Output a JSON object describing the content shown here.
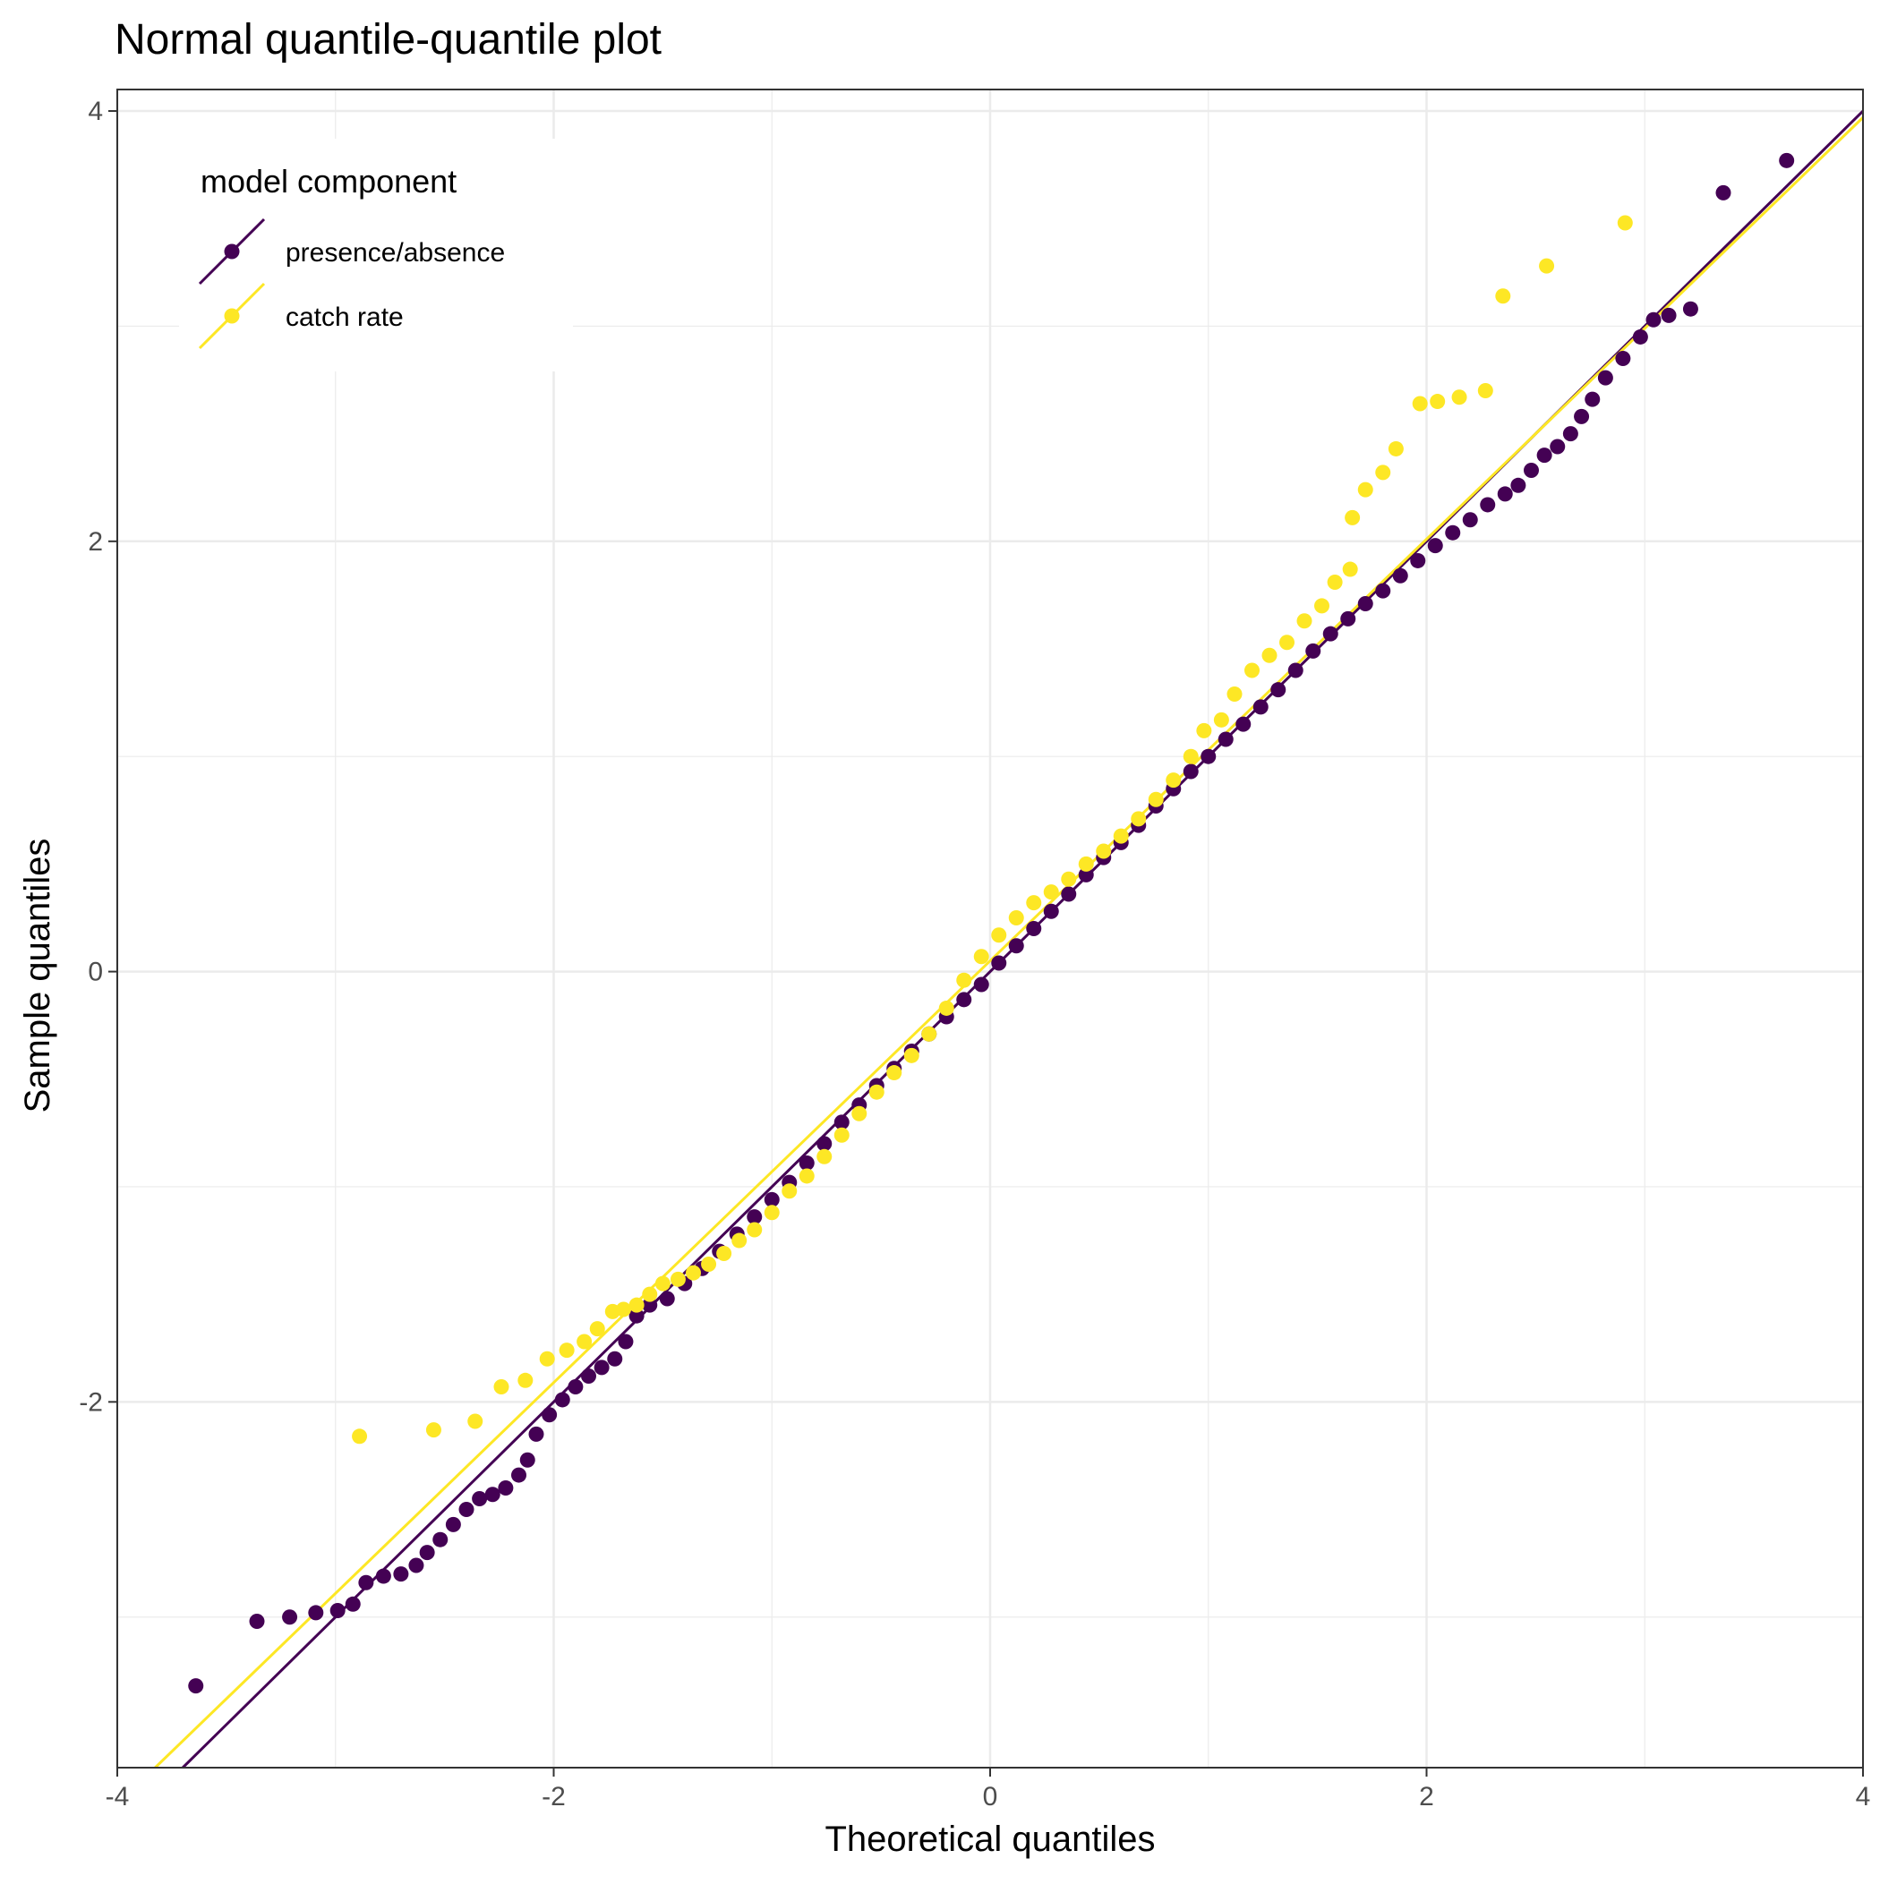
{
  "chart_data": {
    "type": "scatter",
    "title": "Normal quantile-quantile plot",
    "xlabel": "Theoretical quantiles",
    "ylabel": "Sample quantiles",
    "xlim": [
      -4,
      4
    ],
    "ylim": [
      -3.7,
      4.1
    ],
    "x_ticks": [
      "-4",
      "-2",
      "0",
      "2",
      "4"
    ],
    "y_ticks": [
      "-2",
      "0",
      "2",
      "4"
    ],
    "x_tick_values": [
      -4,
      -2,
      0,
      2,
      4
    ],
    "y_tick_values": [
      -2,
      0,
      2,
      4
    ],
    "grid": true,
    "legend": {
      "title": "model component",
      "placement": "top-left"
    },
    "series": [
      {
        "name": "presence/absence",
        "color": "#440154",
        "reference_line": {
          "intercept": 0.0,
          "slope": 1.0
        },
        "points": [
          [
            -3.64,
            -3.32
          ],
          [
            -3.36,
            -3.02
          ],
          [
            -3.21,
            -3.0
          ],
          [
            -3.09,
            -2.98
          ],
          [
            -2.99,
            -2.97
          ],
          [
            -2.92,
            -2.94
          ],
          [
            -2.86,
            -2.84
          ],
          [
            -2.78,
            -2.81
          ],
          [
            -2.7,
            -2.8
          ],
          [
            -2.63,
            -2.76
          ],
          [
            -2.58,
            -2.7
          ],
          [
            -2.52,
            -2.64
          ],
          [
            -2.46,
            -2.57
          ],
          [
            -2.4,
            -2.5
          ],
          [
            -2.34,
            -2.45
          ],
          [
            -2.28,
            -2.43
          ],
          [
            -2.22,
            -2.4
          ],
          [
            -2.16,
            -2.34
          ],
          [
            -2.12,
            -2.27
          ],
          [
            -2.08,
            -2.15
          ],
          [
            -2.02,
            -2.06
          ],
          [
            -1.96,
            -1.99
          ],
          [
            -1.9,
            -1.93
          ],
          [
            -1.84,
            -1.88
          ],
          [
            -1.78,
            -1.84
          ],
          [
            -1.72,
            -1.8
          ],
          [
            -1.67,
            -1.72
          ],
          [
            -1.62,
            -1.6
          ],
          [
            -1.56,
            -1.55
          ],
          [
            -1.48,
            -1.52
          ],
          [
            -1.4,
            -1.45
          ],
          [
            -1.32,
            -1.38
          ],
          [
            -1.24,
            -1.3
          ],
          [
            -1.16,
            -1.22
          ],
          [
            -1.08,
            -1.14
          ],
          [
            -1.0,
            -1.06
          ],
          [
            -0.92,
            -0.98
          ],
          [
            -0.84,
            -0.89
          ],
          [
            -0.76,
            -0.8
          ],
          [
            -0.68,
            -0.7
          ],
          [
            -0.6,
            -0.62
          ],
          [
            -0.52,
            -0.53
          ],
          [
            -0.44,
            -0.45
          ],
          [
            -0.36,
            -0.37
          ],
          [
            -0.28,
            -0.29
          ],
          [
            -0.2,
            -0.21
          ],
          [
            -0.12,
            -0.13
          ],
          [
            -0.04,
            -0.06
          ],
          [
            0.04,
            0.04
          ],
          [
            0.12,
            0.12
          ],
          [
            0.2,
            0.2
          ],
          [
            0.28,
            0.28
          ],
          [
            0.36,
            0.36
          ],
          [
            0.44,
            0.45
          ],
          [
            0.52,
            0.53
          ],
          [
            0.6,
            0.6
          ],
          [
            0.68,
            0.68
          ],
          [
            0.76,
            0.77
          ],
          [
            0.84,
            0.85
          ],
          [
            0.92,
            0.93
          ],
          [
            1.0,
            1.0
          ],
          [
            1.08,
            1.08
          ],
          [
            1.16,
            1.15
          ],
          [
            1.24,
            1.23
          ],
          [
            1.32,
            1.31
          ],
          [
            1.4,
            1.4
          ],
          [
            1.48,
            1.49
          ],
          [
            1.56,
            1.57
          ],
          [
            1.64,
            1.64
          ],
          [
            1.72,
            1.71
          ],
          [
            1.8,
            1.77
          ],
          [
            1.88,
            1.84
          ],
          [
            1.96,
            1.91
          ],
          [
            2.04,
            1.98
          ],
          [
            2.12,
            2.04
          ],
          [
            2.2,
            2.1
          ],
          [
            2.28,
            2.17
          ],
          [
            2.36,
            2.22
          ],
          [
            2.42,
            2.26
          ],
          [
            2.48,
            2.33
          ],
          [
            2.54,
            2.4
          ],
          [
            2.6,
            2.44
          ],
          [
            2.66,
            2.5
          ],
          [
            2.71,
            2.58
          ],
          [
            2.76,
            2.66
          ],
          [
            2.82,
            2.76
          ],
          [
            2.9,
            2.85
          ],
          [
            2.98,
            2.95
          ],
          [
            3.04,
            3.03
          ],
          [
            3.11,
            3.05
          ],
          [
            3.21,
            3.08
          ],
          [
            3.36,
            3.62
          ],
          [
            3.65,
            3.77
          ]
        ]
      },
      {
        "name": "catch rate",
        "color": "#fde725",
        "reference_line": {
          "intercept": 0.05,
          "slope": 0.98
        },
        "points": [
          [
            -2.89,
            -2.16
          ],
          [
            -2.55,
            -2.13
          ],
          [
            -2.36,
            -2.09
          ],
          [
            -2.24,
            -1.93
          ],
          [
            -2.13,
            -1.9
          ],
          [
            -2.03,
            -1.8
          ],
          [
            -1.94,
            -1.76
          ],
          [
            -1.86,
            -1.72
          ],
          [
            -1.8,
            -1.66
          ],
          [
            -1.73,
            -1.58
          ],
          [
            -1.68,
            -1.57
          ],
          [
            -1.62,
            -1.55
          ],
          [
            -1.56,
            -1.5
          ],
          [
            -1.5,
            -1.45
          ],
          [
            -1.43,
            -1.43
          ],
          [
            -1.36,
            -1.4
          ],
          [
            -1.29,
            -1.36
          ],
          [
            -1.22,
            -1.31
          ],
          [
            -1.15,
            -1.25
          ],
          [
            -1.08,
            -1.2
          ],
          [
            -1.0,
            -1.12
          ],
          [
            -0.92,
            -1.02
          ],
          [
            -0.84,
            -0.95
          ],
          [
            -0.76,
            -0.86
          ],
          [
            -0.68,
            -0.76
          ],
          [
            -0.6,
            -0.66
          ],
          [
            -0.52,
            -0.56
          ],
          [
            -0.44,
            -0.47
          ],
          [
            -0.36,
            -0.39
          ],
          [
            -0.28,
            -0.29
          ],
          [
            -0.2,
            -0.17
          ],
          [
            -0.12,
            -0.04
          ],
          [
            -0.04,
            0.07
          ],
          [
            0.04,
            0.17
          ],
          [
            0.12,
            0.25
          ],
          [
            0.2,
            0.32
          ],
          [
            0.28,
            0.37
          ],
          [
            0.36,
            0.43
          ],
          [
            0.44,
            0.5
          ],
          [
            0.52,
            0.56
          ],
          [
            0.6,
            0.63
          ],
          [
            0.68,
            0.71
          ],
          [
            0.76,
            0.8
          ],
          [
            0.84,
            0.89
          ],
          [
            0.92,
            1.0
          ],
          [
            0.98,
            1.12
          ],
          [
            1.06,
            1.17
          ],
          [
            1.12,
            1.29
          ],
          [
            1.2,
            1.4
          ],
          [
            1.28,
            1.47
          ],
          [
            1.36,
            1.53
          ],
          [
            1.44,
            1.63
          ],
          [
            1.52,
            1.7
          ],
          [
            1.58,
            1.81
          ],
          [
            1.65,
            1.87
          ],
          [
            1.66,
            2.11
          ],
          [
            1.72,
            2.24
          ],
          [
            1.8,
            2.32
          ],
          [
            1.86,
            2.43
          ],
          [
            1.97,
            2.64
          ],
          [
            2.05,
            2.65
          ],
          [
            2.15,
            2.67
          ],
          [
            2.27,
            2.7
          ],
          [
            2.35,
            3.14
          ],
          [
            2.55,
            3.28
          ],
          [
            2.91,
            3.48
          ]
        ]
      }
    ]
  }
}
